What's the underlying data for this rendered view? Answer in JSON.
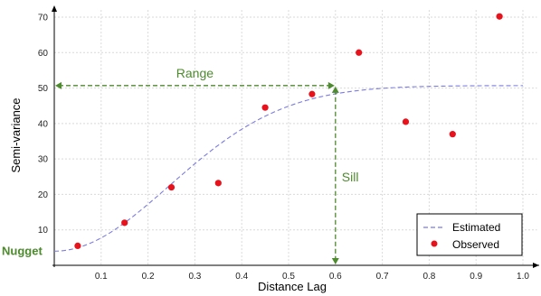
{
  "chart_data": {
    "type": "scatter",
    "title": "",
    "xlabel": "Distance Lag",
    "ylabel": "Semi-variance",
    "xlim": [
      0,
      1.03
    ],
    "ylim": [
      0,
      72
    ],
    "x_ticks": [
      0.1,
      0.2,
      0.3,
      0.4,
      0.5,
      0.6,
      0.7,
      0.8,
      0.9,
      1.0
    ],
    "x_tick_labels": [
      "0.1",
      "0.2",
      "0.3",
      "0.4",
      "0.5",
      "0.6",
      "0.7",
      "0.8",
      "0.9",
      "1.0"
    ],
    "y_ticks": [
      10,
      20,
      30,
      40,
      50,
      60,
      70
    ],
    "y_tick_labels": [
      "10",
      "20",
      "30",
      "40",
      "50",
      "60",
      "70"
    ],
    "grid": true,
    "legend_position": "bottom-right",
    "series": [
      {
        "name": "Observed",
        "kind": "points",
        "color": "#e8121c",
        "x": [
          0.05,
          0.15,
          0.25,
          0.35,
          0.45,
          0.55,
          0.65,
          0.75,
          0.85,
          0.95
        ],
        "y": [
          5.5,
          12,
          22,
          23.2,
          44.5,
          48.3,
          60,
          40.5,
          37,
          70.2
        ]
      },
      {
        "name": "Estimated",
        "kind": "gaussian-variogram",
        "color": "#7b7be0",
        "nugget": 4,
        "sill": 50.7,
        "range": 0.6
      }
    ],
    "annotations": {
      "range_label": "Range",
      "sill_label": "Sill",
      "nugget_label": "Nugget",
      "color": "#4e8a2e"
    }
  }
}
